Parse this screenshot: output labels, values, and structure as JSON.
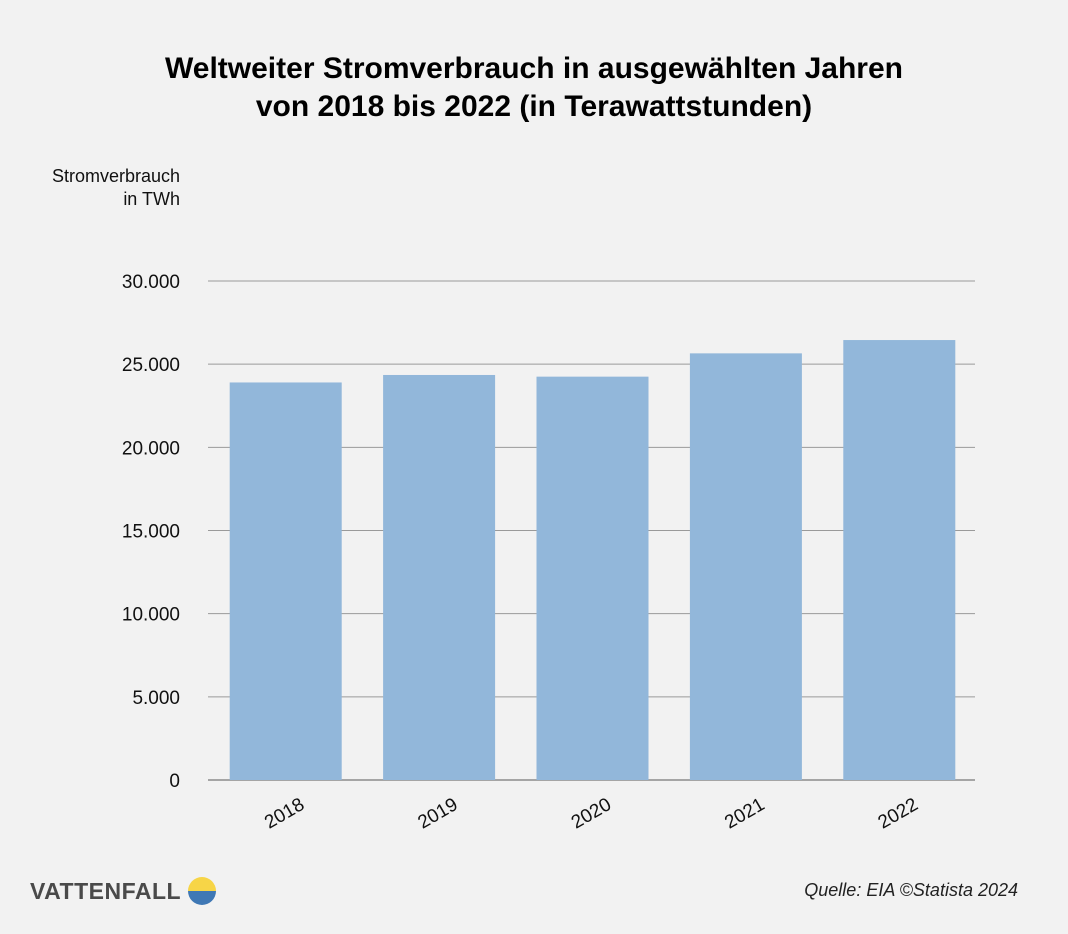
{
  "chart_data": {
    "type": "bar",
    "title_lines": [
      "Weltweiter Stromverbrauch in ausgewählten Jahren",
      "von 2018 bis 2022 (in Terawattstunden)"
    ],
    "ylabel_lines": [
      "Stromverbrauch",
      "in TWh"
    ],
    "xlabel": "",
    "categories": [
      "2018",
      "2019",
      "2020",
      "2021",
      "2022"
    ],
    "values": [
      23900,
      24350,
      24250,
      25650,
      26450
    ],
    "ylim": [
      0,
      30000
    ],
    "yticks": [
      0,
      5000,
      10000,
      15000,
      20000,
      25000,
      30000
    ],
    "ytick_labels": [
      "0",
      "5.000",
      "10.000",
      "15.000",
      "20.000",
      "25.000",
      "30.000"
    ],
    "grid": true,
    "bar_color": "#92b7da",
    "grid_color": "#9a9a9a"
  },
  "footer": {
    "brand": "VATTENFALL",
    "source": "Quelle: EIA ©Statista 2024",
    "brand_colors": {
      "yellow": "#f7d547",
      "blue": "#3f78b5"
    }
  }
}
